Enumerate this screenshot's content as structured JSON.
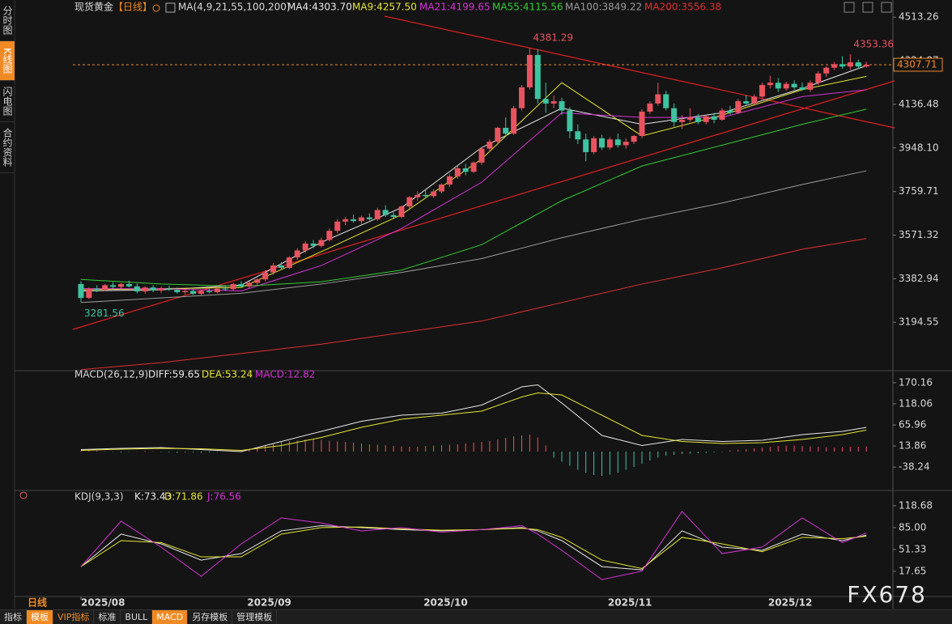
{
  "sidebar": [
    "分时图",
    "K线图",
    "闪电图",
    "合约资料"
  ],
  "period_label": "日线",
  "watermark": "FX678",
  "toolbar": [
    "指标",
    "模板",
    "VIP指标",
    "标准",
    "BULL",
    "MACD",
    "另存模板",
    "管理模板"
  ],
  "chart_data": [
    {
      "type": "candlestick",
      "title": "现货黄金",
      "period": "【日线】",
      "indicator": "MA(4,9,21,55,100,200)",
      "up_color": "#e9535f",
      "down_color": "#3ec3a0",
      "candles": [
        [
          3360,
          3372,
          3281.56,
          3300
        ],
        [
          3300,
          3345,
          3295,
          3340
        ],
        [
          3340,
          3355,
          3325,
          3335
        ],
        [
          3335,
          3360,
          3330,
          3355
        ],
        [
          3355,
          3368,
          3340,
          3348
        ],
        [
          3348,
          3365,
          3338,
          3360
        ],
        [
          3360,
          3375,
          3345,
          3350
        ],
        [
          3350,
          3362,
          3320,
          3328
        ],
        [
          3328,
          3350,
          3318,
          3345
        ],
        [
          3345,
          3355,
          3325,
          3332
        ],
        [
          3332,
          3348,
          3322,
          3340
        ],
        [
          3340,
          3352,
          3330,
          3335
        ],
        [
          3335,
          3345,
          3318,
          3325
        ],
        [
          3325,
          3338,
          3315,
          3330
        ],
        [
          3330,
          3340,
          3312,
          3318
        ],
        [
          3318,
          3335,
          3310,
          3330
        ],
        [
          3330,
          3342,
          3320,
          3325
        ],
        [
          3325,
          3345,
          3320,
          3340
        ],
        [
          3340,
          3355,
          3330,
          3338
        ],
        [
          3338,
          3365,
          3332,
          3360
        ],
        [
          3360,
          3372,
          3345,
          3350
        ],
        [
          3350,
          3370,
          3342,
          3365
        ],
        [
          3365,
          3385,
          3355,
          3380
        ],
        [
          3380,
          3420,
          3372,
          3410
        ],
        [
          3410,
          3450,
          3400,
          3440
        ],
        [
          3440,
          3455,
          3420,
          3430
        ],
        [
          3430,
          3480,
          3425,
          3475
        ],
        [
          3475,
          3515,
          3465,
          3505
        ],
        [
          3505,
          3545,
          3495,
          3535
        ],
        [
          3535,
          3550,
          3515,
          3525
        ],
        [
          3525,
          3560,
          3518,
          3550
        ],
        [
          3550,
          3600,
          3545,
          3590
        ],
        [
          3590,
          3640,
          3580,
          3630
        ],
        [
          3630,
          3650,
          3615,
          3640
        ],
        [
          3640,
          3660,
          3625,
          3632
        ],
        [
          3632,
          3655,
          3620,
          3648
        ],
        [
          3648,
          3665,
          3635,
          3640
        ],
        [
          3640,
          3690,
          3632,
          3680
        ],
        [
          3680,
          3700,
          3650,
          3658
        ],
        [
          3658,
          3672,
          3640,
          3650
        ],
        [
          3650,
          3700,
          3645,
          3695
        ],
        [
          3695,
          3740,
          3688,
          3735
        ],
        [
          3735,
          3760,
          3720,
          3745
        ],
        [
          3745,
          3765,
          3730,
          3740
        ],
        [
          3740,
          3770,
          3732,
          3760
        ],
        [
          3760,
          3795,
          3752,
          3790
        ],
        [
          3790,
          3835,
          3780,
          3825
        ],
        [
          3825,
          3870,
          3815,
          3860
        ],
        [
          3860,
          3880,
          3830,
          3845
        ],
        [
          3845,
          3890,
          3840,
          3885
        ],
        [
          3885,
          3950,
          3875,
          3945
        ],
        [
          3945,
          3985,
          3930,
          3975
        ],
        [
          3975,
          4040,
          3965,
          4035
        ],
        [
          4035,
          4080,
          3995,
          4010
        ],
        [
          4010,
          4130,
          4005,
          4120
        ],
        [
          4120,
          4220,
          4110,
          4210
        ],
        [
          4210,
          4381.29,
          4200,
          4350
        ],
        [
          4350,
          4375,
          4140,
          4160
        ],
        [
          4160,
          4230,
          4100,
          4140
        ],
        [
          4140,
          4175,
          4120,
          4150
        ],
        [
          4150,
          4165,
          4090,
          4110
        ],
        [
          4110,
          4125,
          3990,
          4020
        ],
        [
          4020,
          4050,
          3965,
          3985
        ],
        [
          3985,
          4010,
          3890,
          3930
        ],
        [
          3930,
          4000,
          3920,
          3990
        ],
        [
          3990,
          4005,
          3940,
          3950
        ],
        [
          3950,
          3995,
          3940,
          3985
        ],
        [
          3985,
          4010,
          3950,
          3960
        ],
        [
          3960,
          3990,
          3945,
          3975
        ],
        [
          3975,
          4005,
          3965,
          4000
        ],
        [
          4000,
          4115,
          3990,
          4105
        ],
        [
          4105,
          4150,
          4095,
          4140
        ],
        [
          4140,
          4230,
          4130,
          4180
        ],
        [
          4180,
          4195,
          4110,
          4120
        ],
        [
          4120,
          4140,
          4040,
          4060
        ],
        [
          4060,
          4090,
          4030,
          4070
        ],
        [
          4070,
          4120,
          4060,
          4080
        ],
        [
          4080,
          4095,
          4050,
          4060
        ],
        [
          4060,
          4090,
          4050,
          4085
        ],
        [
          4085,
          4100,
          4055,
          4070
        ],
        [
          4070,
          4120,
          4065,
          4110
        ],
        [
          4110,
          4130,
          4090,
          4100
        ],
        [
          4100,
          4160,
          4095,
          4150
        ],
        [
          4150,
          4175,
          4135,
          4140
        ],
        [
          4140,
          4180,
          4130,
          4170
        ],
        [
          4170,
          4230,
          4160,
          4220
        ],
        [
          4220,
          4260,
          4205,
          4230
        ],
        [
          4230,
          4250,
          4190,
          4205
        ],
        [
          4205,
          4235,
          4195,
          4225
        ],
        [
          4225,
          4240,
          4200,
          4210
        ],
        [
          4210,
          4230,
          4195,
          4200
        ],
        [
          4200,
          4240,
          4190,
          4230
        ],
        [
          4230,
          4280,
          4220,
          4270
        ],
        [
          4270,
          4300,
          4255,
          4295
        ],
        [
          4295,
          4320,
          4285,
          4310
        ],
        [
          4310,
          4345,
          4290,
          4300
        ],
        [
          4300,
          4353.36,
          4285,
          4318
        ],
        [
          4318,
          4330,
          4290,
          4300
        ],
        [
          4300,
          4320,
          4295,
          4307.71
        ]
      ],
      "annotations": [
        {
          "candle": 56,
          "field": 1
        },
        {
          "candle": 96,
          "field": 1
        },
        {
          "candle": 0,
          "field": 2
        }
      ],
      "current_price": 4307.71,
      "x": [
        0,
        10,
        20,
        30,
        40,
        50,
        60,
        70,
        80,
        90,
        98
      ],
      "series": [
        {
          "name": "MA4:4303.70",
          "color": "#e8e8e8",
          "values": [
            3330,
            3335,
            3355,
            3540,
            3690,
            3950,
            4120,
            4050,
            4100,
            4205,
            4303.7
          ]
        },
        {
          "name": "MA9:4257.50",
          "color": "#e6e633",
          "values": [
            3335,
            3340,
            3345,
            3500,
            3660,
            3900,
            4230,
            4000,
            4090,
            4200,
            4257.5
          ]
        },
        {
          "name": "MA21:4199.65",
          "color": "#d633d6",
          "values": [
            3340,
            3340,
            3330,
            3440,
            3600,
            3800,
            4100,
            4080,
            4080,
            4170,
            4199.65
          ]
        },
        {
          "name": "MA55:4115.56",
          "color": "#33cc33",
          "values": [
            3380,
            3360,
            3350,
            3370,
            3420,
            3530,
            3720,
            3870,
            3960,
            4050,
            4115.56
          ]
        },
        {
          "name": "MA100:3849.22",
          "color": "#9a9a9a",
          "values": [
            3280,
            3300,
            3320,
            3360,
            3410,
            3470,
            3560,
            3640,
            3710,
            3790,
            3849.22
          ]
        },
        {
          "name": "MA200:3556.38",
          "color": "#e03030",
          "values": [
            2990,
            3020,
            3060,
            3100,
            3150,
            3200,
            3280,
            3360,
            3430,
            3510,
            3556.38
          ]
        }
      ],
      "ylim": [
        2996,
        4535
      ],
      "yticks": [
        4513.26,
        4324.87,
        4136.48,
        {
          "value": 3948.1,
          "label": "3948.10"
        },
        3759.71,
        3571.32,
        3382.94,
        3194.55
      ]
    },
    {
      "type": "macd",
      "title": "MACD(26,12,9)",
      "x": [
        0,
        5,
        10,
        15,
        20,
        25,
        30,
        35,
        40,
        45,
        50,
        55,
        57,
        60,
        65,
        70,
        75,
        80,
        85,
        90,
        95,
        98
      ],
      "series": [
        {
          "name": "DIFF:59.65",
          "color": "#e8e8e8",
          "values": [
            5,
            8,
            10,
            5,
            0,
            25,
            50,
            75,
            90,
            95,
            115,
            160,
            165,
            120,
            40,
            15,
            30,
            25,
            28,
            42,
            50,
            59.65
          ]
        },
        {
          "name": "DEA:53.24",
          "color": "#e6e633",
          "values": [
            3,
            6,
            8,
            7,
            3,
            15,
            35,
            60,
            80,
            90,
            100,
            135,
            145,
            140,
            90,
            40,
            25,
            20,
            22,
            30,
            42,
            53.24
          ]
        }
      ],
      "histogram": {
        "name": "MACD:12.82",
        "color": "#d633d6",
        "up_color": "#e9535f",
        "down_color": "#3ec3a0",
        "values": [
          2,
          3,
          2,
          1,
          -1,
          -2,
          -1,
          1,
          2,
          1,
          -1,
          -2,
          -3,
          -2,
          -2,
          -3,
          -2,
          -1,
          0,
          2,
          3,
          5,
          10,
          16,
          20,
          24,
          27,
          28,
          30,
          30,
          29,
          27,
          25,
          24,
          22,
          20,
          18,
          17,
          16,
          14,
          13,
          12,
          12,
          14,
          15,
          16,
          17,
          18,
          20,
          22,
          24,
          26,
          30,
          34,
          38,
          40,
          42,
          35,
          15,
          -15,
          -25,
          -35,
          -45,
          -52,
          -58,
          -60,
          -57,
          -52,
          -45,
          -38,
          -30,
          -22,
          -15,
          -10,
          -8,
          -6,
          -5,
          -4,
          -3,
          -2,
          -1,
          3,
          5,
          6,
          8,
          10,
          12,
          14,
          15,
          15,
          14,
          13,
          12,
          11,
          10,
          11,
          12,
          12,
          12.82
        ]
      },
      "ylim": [
        -94,
        190
      ],
      "yticks": [
        170.16,
        118.06,
        65.96,
        13.86,
        -38.24
      ]
    },
    {
      "type": "line",
      "title": "KDJ(9,3,3)",
      "x": [
        0,
        5,
        10,
        15,
        20,
        25,
        30,
        35,
        40,
        45,
        50,
        55,
        57,
        60,
        65,
        70,
        75,
        80,
        85,
        90,
        95,
        98
      ],
      "series": [
        {
          "name": "K:73.43",
          "color": "#e8e8e8",
          "values": [
            25,
            75,
            60,
            35,
            45,
            80,
            88,
            85,
            82,
            80,
            82,
            85,
            80,
            65,
            25,
            20,
            80,
            55,
            50,
            75,
            65,
            73.43
          ]
        },
        {
          "name": "D:71.86",
          "color": "#e6e633",
          "values": [
            25,
            65,
            62,
            40,
            40,
            75,
            85,
            86,
            83,
            81,
            82,
            84,
            82,
            70,
            35,
            22,
            70,
            60,
            48,
            70,
            68,
            71.86
          ]
        },
        {
          "name": "J:76.56",
          "color": "#d633d6",
          "values": [
            25,
            95,
            55,
            10,
            60,
            100,
            92,
            80,
            85,
            78,
            82,
            88,
            75,
            50,
            5,
            18,
            110,
            45,
            55,
            100,
            62,
            76.56
          ]
        }
      ],
      "ylim": [
        -18.5,
        131
      ],
      "yticks": [
        118.68,
        {
          "value": 85,
          "label": "85.00"
        },
        51.33,
        17.65
      ],
      "xticks": [
        {
          "value": 0,
          "label": "2025/08"
        },
        {
          "value": 23.5,
          "label": "2025/09"
        },
        {
          "value": 45.5,
          "label": "2025/10"
        },
        {
          "value": 68.5,
          "label": "2025/11"
        },
        {
          "value": 88.5,
          "label": "2025/12"
        }
      ]
    }
  ]
}
